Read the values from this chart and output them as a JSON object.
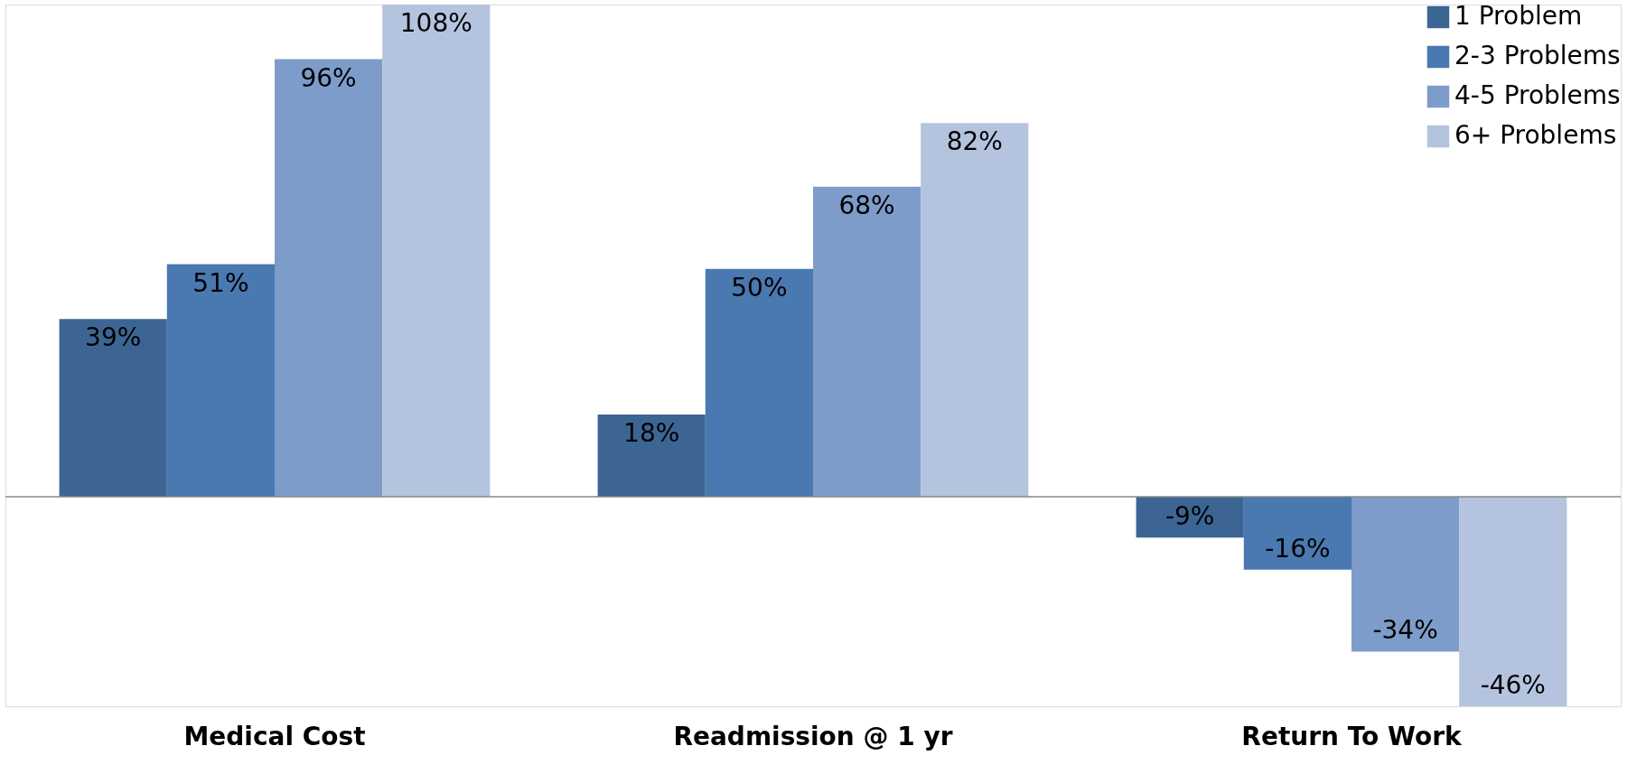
{
  "chart_data": {
    "type": "bar",
    "categories": [
      "Medical Cost",
      "Readmission @ 1 yr",
      "Return To Work"
    ],
    "series": [
      {
        "name": "1 Problem",
        "color": "#3d6594",
        "values": [
          39,
          18,
          -9
        ],
        "value_labels": [
          "39%",
          "18%",
          "-9%"
        ]
      },
      {
        "name": "2-3 Problems",
        "color": "#4a78b0",
        "values": [
          51,
          50,
          -16
        ],
        "value_labels": [
          "51%",
          "50%",
          "-16%"
        ]
      },
      {
        "name": "4-5 Problems",
        "color": "#7d9cc9",
        "values": [
          96,
          68,
          -34
        ],
        "value_labels": [
          "96%",
          "68%",
          "-34%"
        ]
      },
      {
        "name": "6+ Problems",
        "color": "#b4c4de",
        "values": [
          108,
          82,
          -46
        ],
        "value_labels": [
          "108%",
          "82%",
          "-46%"
        ]
      }
    ],
    "legend": "top right"
  }
}
